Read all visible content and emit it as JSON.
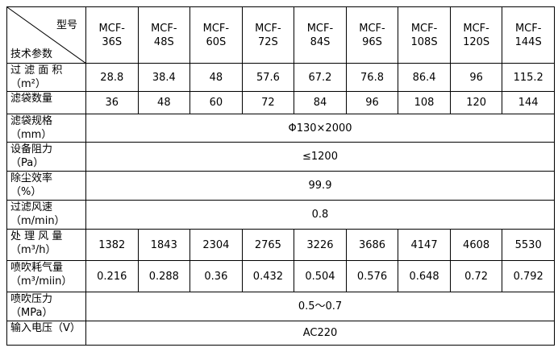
{
  "table": {
    "corner": {
      "top": "型号",
      "bottom": "技术参数"
    },
    "models": [
      [
        "MCF-",
        "36S"
      ],
      [
        "MCF-",
        "48S"
      ],
      [
        "MCF-",
        "60S"
      ],
      [
        "MCF-",
        "72S"
      ],
      [
        "MCF-",
        "84S"
      ],
      [
        "MCF-",
        "96S"
      ],
      [
        "MCF-",
        "108S"
      ],
      [
        "MCF-",
        "120S"
      ],
      [
        "MCF-",
        "144S"
      ]
    ],
    "rows": [
      {
        "label": [
          "过 滤 面 积",
          "（m²）"
        ],
        "values": [
          "28.8",
          "38.4",
          "48",
          "57.6",
          "67.2",
          "76.8",
          "86.4",
          "96",
          "115.2"
        ]
      },
      {
        "label": [
          "滤袋数量"
        ],
        "values": [
          "36",
          "48",
          "60",
          "72",
          "84",
          "96",
          "108",
          "120",
          "144"
        ]
      },
      {
        "label": [
          "滤袋规格",
          "（mm）"
        ],
        "value": "Φ130×2000"
      },
      {
        "label": [
          "设备阻力",
          "（Pa）"
        ],
        "value": "≤1200"
      },
      {
        "label": [
          "除尘效率",
          "（%）"
        ],
        "value": "99.9"
      },
      {
        "label": [
          "过滤风速",
          "（m/min）"
        ],
        "value": "0.8"
      },
      {
        "label": [
          "处 理 风 量",
          "（m³/h）"
        ],
        "values": [
          "1382",
          "1843",
          "2304",
          "2765",
          "3226",
          "3686",
          "4147",
          "4608",
          "5530"
        ]
      },
      {
        "label": [
          "喷吹耗气量",
          "（m³/miin）"
        ],
        "values": [
          "0.216",
          "0.288",
          "0.36",
          "0.432",
          "0.504",
          "0.576",
          "0.648",
          "0.72",
          "0.792"
        ]
      },
      {
        "label": [
          "喷吹压力",
          "（MPa）"
        ],
        "value": "0.5～0.7"
      },
      {
        "label": [
          "输入电压（V）"
        ],
        "value": "AC220"
      }
    ]
  }
}
